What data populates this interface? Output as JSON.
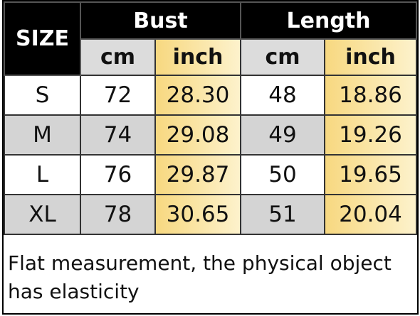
{
  "table": {
    "header": {
      "size": "SIZE",
      "groups": [
        "Bust",
        "Length"
      ],
      "units": [
        "cm",
        "inch",
        "cm",
        "inch"
      ]
    },
    "rows": [
      [
        "S",
        "72",
        "28.30",
        "48",
        "18.86"
      ],
      [
        "M",
        "74",
        "29.08",
        "49",
        "19.26"
      ],
      [
        "L",
        "76",
        "29.87",
        "50",
        "19.65"
      ],
      [
        "XL",
        "78",
        "30.65",
        "51",
        "20.04"
      ]
    ],
    "note": "Flat measurement, the physical object has elasticity"
  }
}
